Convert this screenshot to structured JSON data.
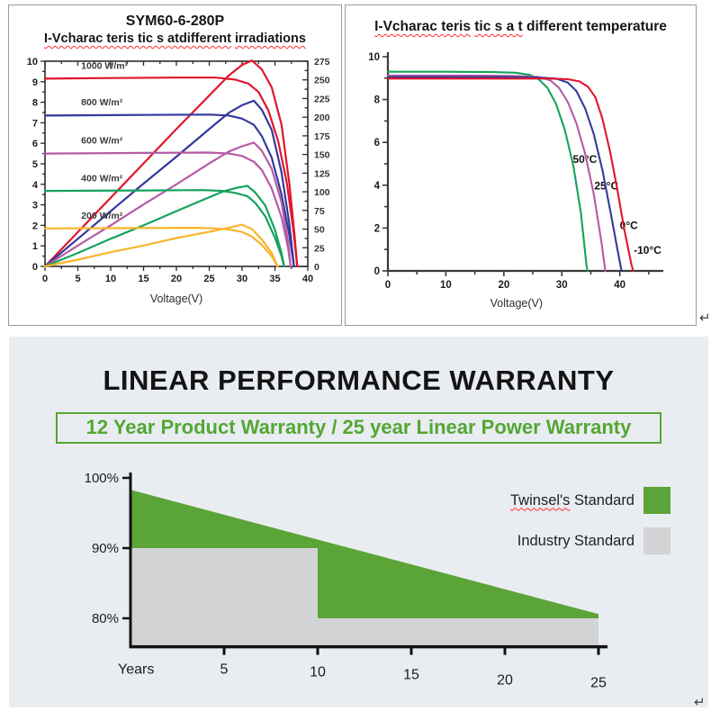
{
  "colors": {
    "red": "#e0162b",
    "blue": "#343a9b",
    "purple": "#b65ba5",
    "green": "#14a35b",
    "orange": "#f7b52c",
    "twinsel_green": "#5ba437",
    "industry_gray": "#d2d3d5",
    "banner_green": "#53a733",
    "panel_bg": "#e9edf1",
    "axis": "#2b2b2b"
  },
  "charts": {
    "irradiation": {
      "title": "SYM60-6-280P",
      "subtitle_wavy1": "I-Vcharac teris tic s atdifferent",
      "subtitle_wavy2": "irradiations",
      "xlabel": "Voltage(V)"
    },
    "temperature": {
      "title_wavy1": "I-Vcharac teris",
      "title_wavy2": "tic s a t",
      "title_rest": " different temperature",
      "xlabel": "Voltage(V)"
    }
  },
  "warranty": {
    "heading": "LINEAR PERFORMANCE WARRANTY",
    "banner": "12 Year Product Warranty / 25 year Linear Power Warranty",
    "years_label": "Years",
    "legend": [
      {
        "label_underlined": "Twinsel's",
        "label_rest": " Standard",
        "color": "#5ba437"
      },
      {
        "label_underlined": "",
        "label_rest": "Industry Standard",
        "color": "#d2d3d5"
      }
    ]
  },
  "misc": {
    "return_mark": "↵"
  },
  "chart_data": [
    {
      "id": "iv_irradiation",
      "type": "line",
      "title": "SYM60-6-280P",
      "subtitle": "I-V characteristics at different irradiations",
      "xlabel": "Voltage(V)",
      "x_axis": {
        "min": 0,
        "max": 40,
        "labels": [
          0,
          5,
          10,
          15,
          20,
          25,
          30,
          35,
          40
        ],
        "minor_step": 2.5
      },
      "y_left": {
        "min": 0,
        "max": 10,
        "labels": [
          0,
          1,
          2,
          3,
          4,
          5,
          6,
          7,
          8,
          9,
          10
        ],
        "minor_step": 0.5
      },
      "y_right": {
        "min": 0,
        "max": 275,
        "labels": [
          0,
          25,
          50,
          75,
          100,
          125,
          150,
          175,
          200,
          225,
          250,
          275
        ],
        "minor_step": 12.5
      },
      "series": [
        {
          "name": "1000 W/m²",
          "color": "#e0162b",
          "label_xy": [
            5.5,
            9.62
          ],
          "iv": [
            [
              0,
              9.15
            ],
            [
              10,
              9.18
            ],
            [
              20,
              9.2
            ],
            [
              26,
              9.2
            ],
            [
              29,
              9.1
            ],
            [
              31,
              8.9
            ],
            [
              32.5,
              8.5
            ],
            [
              34,
              7.6
            ],
            [
              35.5,
              6.1
            ],
            [
              36.8,
              4.1
            ],
            [
              37.8,
              1.8
            ],
            [
              38.4,
              0
            ]
          ],
          "pv": [
            [
              0,
              0
            ],
            [
              5,
              46
            ],
            [
              10,
              92
            ],
            [
              15,
              138
            ],
            [
              20,
              184
            ],
            [
              25,
              229
            ],
            [
              28,
              256
            ],
            [
              30,
              270
            ],
            [
              31.5,
              276
            ],
            [
              33,
              264
            ],
            [
              34.5,
              240
            ],
            [
              36,
              190
            ],
            [
              37.2,
              110
            ],
            [
              38,
              40
            ],
            [
              38.4,
              0
            ]
          ]
        },
        {
          "name": "800 W/m²",
          "color": "#343a9b",
          "label_xy": [
            5.5,
            7.85
          ],
          "iv": [
            [
              0,
              7.35
            ],
            [
              15,
              7.38
            ],
            [
              25,
              7.4
            ],
            [
              28,
              7.35
            ],
            [
              30,
              7.2
            ],
            [
              31.8,
              6.9
            ],
            [
              33,
              6.35
            ],
            [
              34.5,
              5.3
            ],
            [
              36,
              3.5
            ],
            [
              37.2,
              1.5
            ],
            [
              37.9,
              0
            ]
          ],
          "pv": [
            [
              0,
              0
            ],
            [
              5,
              37
            ],
            [
              10,
              74
            ],
            [
              15,
              111
            ],
            [
              20,
              147
            ],
            [
              25,
              184
            ],
            [
              28,
              206
            ],
            [
              30,
              216
            ],
            [
              31.8,
              222
            ],
            [
              33,
              210
            ],
            [
              34.5,
              183
            ],
            [
              36,
              126
            ],
            [
              37.2,
              56
            ],
            [
              37.9,
              0
            ]
          ]
        },
        {
          "name": "600 W/m²",
          "color": "#b65ba5",
          "label_xy": [
            5.5,
            5.98
          ],
          "iv": [
            [
              0,
              5.5
            ],
            [
              15,
              5.53
            ],
            [
              25,
              5.55
            ],
            [
              28,
              5.5
            ],
            [
              30,
              5.38
            ],
            [
              31.8,
              5.1
            ],
            [
              33,
              4.7
            ],
            [
              34.5,
              3.8
            ],
            [
              36,
              2.4
            ],
            [
              37,
              0.9
            ],
            [
              37.4,
              0
            ]
          ],
          "pv": [
            [
              0,
              0
            ],
            [
              5,
              28
            ],
            [
              10,
              55
            ],
            [
              15,
              83
            ],
            [
              20,
              110
            ],
            [
              25,
              138
            ],
            [
              28,
              154
            ],
            [
              30,
              161
            ],
            [
              31.8,
              166
            ],
            [
              33,
              155
            ],
            [
              34.5,
              131
            ],
            [
              36,
              86
            ],
            [
              37,
              33
            ],
            [
              37.4,
              0
            ]
          ]
        },
        {
          "name": "400 W/m²",
          "color": "#14a35b",
          "label_xy": [
            5.5,
            4.15
          ],
          "iv": [
            [
              0,
              3.68
            ],
            [
              15,
              3.7
            ],
            [
              24,
              3.72
            ],
            [
              27,
              3.68
            ],
            [
              29,
              3.58
            ],
            [
              30.8,
              3.42
            ],
            [
              32,
              3.1
            ],
            [
              33.5,
              2.45
            ],
            [
              35,
              1.4
            ],
            [
              36,
              0.5
            ],
            [
              36.4,
              0
            ]
          ],
          "pv": [
            [
              0,
              0
            ],
            [
              5,
              18
            ],
            [
              10,
              37
            ],
            [
              15,
              55
            ],
            [
              20,
              74
            ],
            [
              24,
              89
            ],
            [
              27,
              100
            ],
            [
              29,
              105
            ],
            [
              30.8,
              108
            ],
            [
              32,
              99
            ],
            [
              33.5,
              82
            ],
            [
              35,
              49
            ],
            [
              36,
              18
            ],
            [
              36.4,
              0
            ]
          ]
        },
        {
          "name": "200 W/m²",
          "color": "#f7b52c",
          "label_xy": [
            5.5,
            2.32
          ],
          "iv": [
            [
              0,
              1.85
            ],
            [
              15,
              1.87
            ],
            [
              23,
              1.88
            ],
            [
              26,
              1.85
            ],
            [
              28,
              1.8
            ],
            [
              30,
              1.68
            ],
            [
              31.5,
              1.45
            ],
            [
              33,
              1.05
            ],
            [
              34.5,
              0.5
            ],
            [
              35.4,
              0
            ]
          ],
          "pv": [
            [
              0,
              0
            ],
            [
              5,
              9
            ],
            [
              10,
              19
            ],
            [
              15,
              28
            ],
            [
              20,
              38
            ],
            [
              23,
              43
            ],
            [
              26,
              48
            ],
            [
              28,
              52
            ],
            [
              30,
              56
            ],
            [
              31.5,
              50
            ],
            [
              33,
              36
            ],
            [
              34.5,
              18
            ],
            [
              35.4,
              0
            ]
          ]
        }
      ]
    },
    {
      "id": "iv_temperature",
      "type": "line",
      "title": "I-V characteristics at different temperature",
      "xlabel": "Voltage(V)",
      "x_axis": {
        "min": 0,
        "max": 47.5,
        "labels": [
          0,
          10,
          20,
          30,
          40
        ],
        "minor_step": 5
      },
      "y_axis": {
        "min": 0,
        "max": 10,
        "labels": [
          0,
          2,
          4,
          6,
          8,
          10
        ],
        "minor_step": 1
      },
      "series": [
        {
          "name": "50°C",
          "color": "#14a35b",
          "label_xy": [
            31.9,
            5.05
          ],
          "points": [
            [
              0,
              9.3
            ],
            [
              10,
              9.3
            ],
            [
              18,
              9.28
            ],
            [
              22,
              9.25
            ],
            [
              24.5,
              9.15
            ],
            [
              26,
              8.95
            ],
            [
              27.5,
              8.55
            ],
            [
              29,
              7.8
            ],
            [
              30.5,
              6.6
            ],
            [
              32,
              4.9
            ],
            [
              33.3,
              2.7
            ],
            [
              34.2,
              0.4
            ],
            [
              34.4,
              0
            ]
          ]
        },
        {
          "name": "25°C",
          "color": "#b65ba5",
          "label_xy": [
            35.6,
            3.8
          ],
          "points": [
            [
              0,
              9.12
            ],
            [
              15,
              9.12
            ],
            [
              22,
              9.1
            ],
            [
              26,
              9.05
            ],
            [
              28,
              8.9
            ],
            [
              29.5,
              8.55
            ],
            [
              31,
              7.9
            ],
            [
              32.5,
              6.9
            ],
            [
              34,
              5.5
            ],
            [
              35.5,
              3.6
            ],
            [
              36.8,
              1.4
            ],
            [
              37.5,
              0
            ]
          ]
        },
        {
          "name": "0°C",
          "color": "#343a9b",
          "label_xy": [
            40.0,
            1.95
          ],
          "points": [
            [
              0,
              9.05
            ],
            [
              20,
              9.05
            ],
            [
              26,
              9.03
            ],
            [
              29,
              8.98
            ],
            [
              31,
              8.8
            ],
            [
              32.5,
              8.4
            ],
            [
              34,
              7.6
            ],
            [
              35.5,
              6.4
            ],
            [
              37,
              4.7
            ],
            [
              38.5,
              2.6
            ],
            [
              39.8,
              0.7
            ],
            [
              40.3,
              0
            ]
          ]
        },
        {
          "name": "-10°C",
          "color": "#e0162b",
          "label_xy": [
            42.4,
            0.8
          ],
          "points": [
            [
              0,
              8.98
            ],
            [
              20,
              8.98
            ],
            [
              28,
              8.98
            ],
            [
              31,
              8.95
            ],
            [
              33,
              8.85
            ],
            [
              34.5,
              8.6
            ],
            [
              35.8,
              8.1
            ],
            [
              37,
              7.1
            ],
            [
              38.3,
              5.6
            ],
            [
              39.5,
              3.9
            ],
            [
              40.8,
              1.9
            ],
            [
              42,
              0.3
            ],
            [
              42.3,
              0
            ]
          ]
        }
      ]
    },
    {
      "id": "warranty",
      "type": "area",
      "title": "LINEAR PERFORMANCE WARRANTY",
      "x_label": "Years",
      "x_range": [
        0,
        25
      ],
      "y_baseline": 76.2,
      "y_ticks": [
        {
          "v": 100,
          "label": "100%"
        },
        {
          "v": 90,
          "label": "90%"
        },
        {
          "v": 80,
          "label": "80%"
        }
      ],
      "x_ticks": [
        {
          "v": 5,
          "label": "5",
          "dy": 0
        },
        {
          "v": 10,
          "label": "10",
          "dy": 3
        },
        {
          "v": 15,
          "label": "15",
          "dy": 6
        },
        {
          "v": 20,
          "label": "20",
          "dy": 12
        },
        {
          "v": 25,
          "label": "25",
          "dy": 15
        }
      ],
      "series": [
        {
          "name": "Twinsel's Standard",
          "color": "#5ba437",
          "points": [
            [
              0,
              98.3
            ],
            [
              25,
              80.6
            ]
          ]
        },
        {
          "name": "Industry Standard",
          "color": "#d2d3d5",
          "points": [
            [
              0,
              90
            ],
            [
              10,
              90
            ],
            [
              10,
              80
            ],
            [
              25,
              80
            ]
          ]
        }
      ]
    }
  ]
}
